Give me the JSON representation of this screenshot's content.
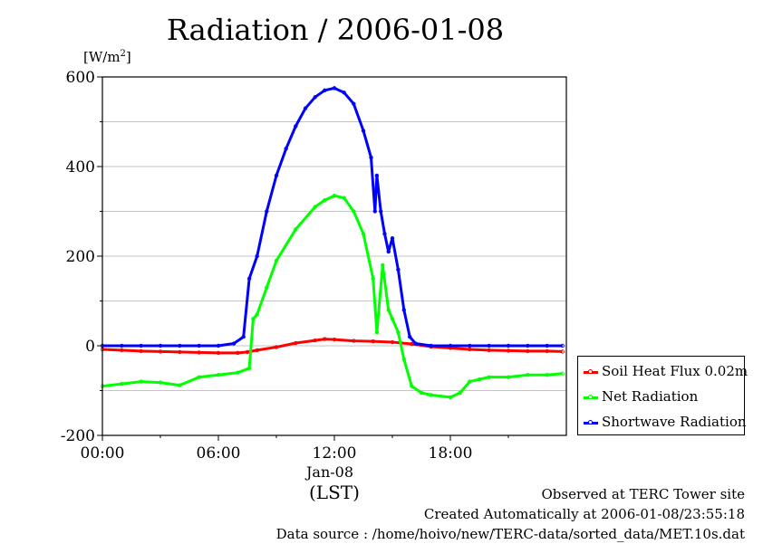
{
  "chart_data": {
    "type": "line",
    "title": "Radiation / 2006-01-08",
    "ylabel_prefix": "[W/m",
    "ylabel_sup": "2",
    "ylabel_suffix": "]",
    "ylim": [
      -200,
      600
    ],
    "yticks": [
      600,
      400,
      200,
      0,
      -200
    ],
    "xlim": [
      0,
      24
    ],
    "xticks": [
      {
        "value": 0,
        "label": "00:00"
      },
      {
        "value": 6,
        "label": "06:00"
      },
      {
        "value": 12,
        "label": "12:00"
      },
      {
        "value": 18,
        "label": "18:00"
      }
    ],
    "x_date_label": "Jan-08",
    "x_timezone_label": "(LST)",
    "grid": true,
    "legend_position": "right",
    "series": [
      {
        "name": "Soil Heat Flux 0.02m",
        "color": "#ff0000",
        "points": [
          [
            0,
            -8
          ],
          [
            1,
            -10
          ],
          [
            2,
            -12
          ],
          [
            3,
            -13
          ],
          [
            4,
            -14
          ],
          [
            5,
            -15
          ],
          [
            6,
            -16
          ],
          [
            7,
            -16
          ],
          [
            7.5,
            -14
          ],
          [
            8,
            -10
          ],
          [
            9,
            -3
          ],
          [
            10,
            6
          ],
          [
            11,
            12
          ],
          [
            11.5,
            15
          ],
          [
            12,
            14
          ],
          [
            13,
            11
          ],
          [
            14,
            10
          ],
          [
            15,
            8
          ],
          [
            16,
            4
          ],
          [
            17,
            -2
          ],
          [
            18,
            -5
          ],
          [
            19,
            -8
          ],
          [
            20,
            -10
          ],
          [
            21,
            -11
          ],
          [
            22,
            -12
          ],
          [
            23,
            -12
          ],
          [
            23.8,
            -13
          ]
        ]
      },
      {
        "name": "Net Radiation",
        "color": "#00ff00",
        "points": [
          [
            0,
            -90
          ],
          [
            1,
            -85
          ],
          [
            2,
            -80
          ],
          [
            3,
            -82
          ],
          [
            4,
            -88
          ],
          [
            5,
            -70
          ],
          [
            6,
            -65
          ],
          [
            7,
            -60
          ],
          [
            7.6,
            -50
          ],
          [
            7.8,
            60
          ],
          [
            8,
            70
          ],
          [
            8.5,
            130
          ],
          [
            9,
            190
          ],
          [
            10,
            260
          ],
          [
            11,
            310
          ],
          [
            11.5,
            325
          ],
          [
            12,
            335
          ],
          [
            12.5,
            330
          ],
          [
            13,
            300
          ],
          [
            13.5,
            250
          ],
          [
            14,
            150
          ],
          [
            14.2,
            30
          ],
          [
            14.5,
            180
          ],
          [
            14.8,
            80
          ],
          [
            15,
            60
          ],
          [
            15.3,
            30
          ],
          [
            15.6,
            -30
          ],
          [
            16,
            -90
          ],
          [
            16.5,
            -105
          ],
          [
            17,
            -110
          ],
          [
            18,
            -115
          ],
          [
            18.5,
            -105
          ],
          [
            19,
            -80
          ],
          [
            19.5,
            -75
          ],
          [
            20,
            -70
          ],
          [
            21,
            -70
          ],
          [
            22,
            -65
          ],
          [
            23,
            -65
          ],
          [
            23.8,
            -62
          ]
        ]
      },
      {
        "name": "Shortwave Radiation",
        "color": "#0000ff",
        "points": [
          [
            0,
            0
          ],
          [
            1,
            0
          ],
          [
            2,
            0
          ],
          [
            3,
            0
          ],
          [
            4,
            0
          ],
          [
            5,
            0
          ],
          [
            6,
            0
          ],
          [
            6.8,
            5
          ],
          [
            7.3,
            20
          ],
          [
            7.6,
            150
          ],
          [
            8,
            200
          ],
          [
            8.5,
            300
          ],
          [
            9,
            380
          ],
          [
            9.5,
            440
          ],
          [
            10,
            490
          ],
          [
            10.5,
            530
          ],
          [
            11,
            555
          ],
          [
            11.5,
            570
          ],
          [
            12,
            575
          ],
          [
            12.5,
            565
          ],
          [
            13,
            540
          ],
          [
            13.5,
            480
          ],
          [
            13.9,
            420
          ],
          [
            14.1,
            300
          ],
          [
            14.2,
            380
          ],
          [
            14.4,
            300
          ],
          [
            14.6,
            250
          ],
          [
            14.8,
            210
          ],
          [
            15,
            240
          ],
          [
            15.3,
            170
          ],
          [
            15.6,
            80
          ],
          [
            15.9,
            20
          ],
          [
            16.2,
            5
          ],
          [
            17,
            0
          ],
          [
            18,
            0
          ],
          [
            19,
            0
          ],
          [
            20,
            0
          ],
          [
            21,
            0
          ],
          [
            22,
            0
          ],
          [
            23,
            0
          ],
          [
            23.8,
            0
          ]
        ]
      }
    ]
  },
  "footer": {
    "line1": "Observed at TERC Tower site",
    "line2": "Created Automatically at 2006-01-08/23:55:18",
    "line3": "Data source : /home/hoivo/new/TERC-data/sorted_data/MET.10s.dat"
  }
}
